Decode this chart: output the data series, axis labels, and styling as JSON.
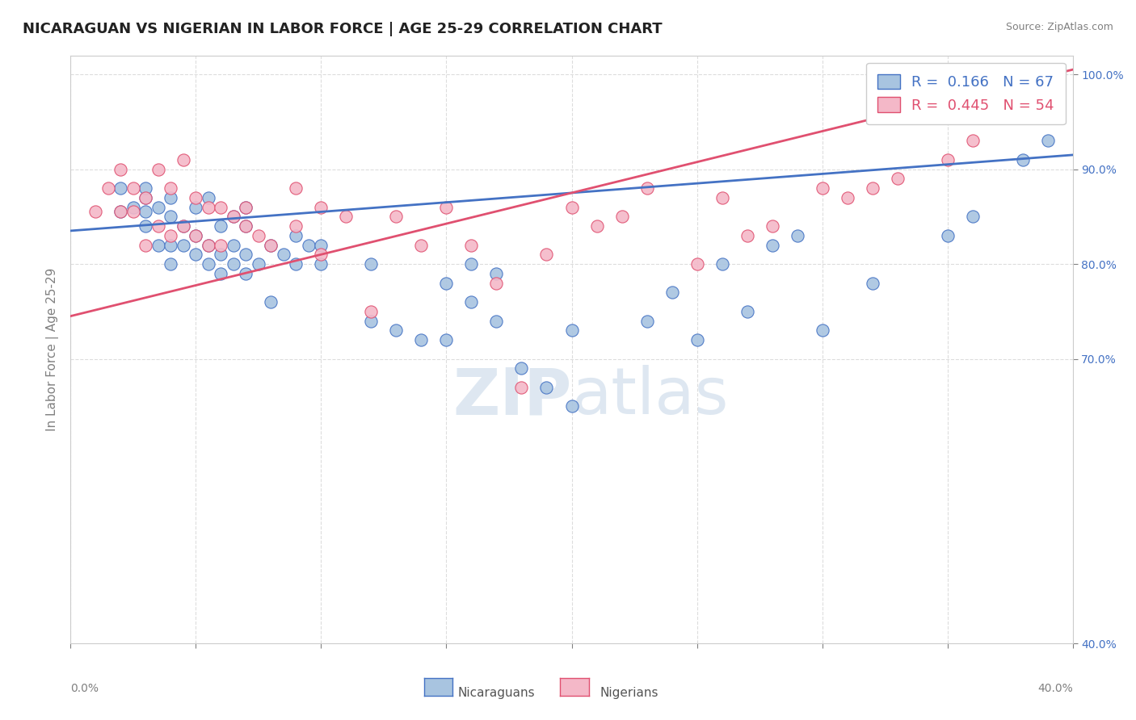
{
  "title": "NICARAGUAN VS NIGERIAN IN LABOR FORCE | AGE 25-29 CORRELATION CHART",
  "source": "Source: ZipAtlas.com",
  "yaxis_label": "In Labor Force | Age 25-29",
  "legend_blue_r_val": "0.166",
  "legend_blue_n_val": "67",
  "legend_pink_r_val": "0.445",
  "legend_pink_n_val": "54",
  "blue_color": "#a8c4e0",
  "pink_color": "#f4b8c8",
  "blue_line_color": "#4472c4",
  "pink_line_color": "#e05070",
  "xmin": 0.0,
  "xmax": 0.4,
  "ymin": 0.4,
  "ymax": 1.02,
  "blue_scatter_x": [
    0.02,
    0.02,
    0.025,
    0.03,
    0.03,
    0.03,
    0.03,
    0.035,
    0.035,
    0.04,
    0.04,
    0.04,
    0.04,
    0.045,
    0.045,
    0.05,
    0.05,
    0.05,
    0.055,
    0.055,
    0.055,
    0.06,
    0.06,
    0.06,
    0.065,
    0.065,
    0.065,
    0.07,
    0.07,
    0.07,
    0.07,
    0.075,
    0.08,
    0.08,
    0.085,
    0.09,
    0.09,
    0.095,
    0.1,
    0.1,
    0.12,
    0.12,
    0.13,
    0.14,
    0.15,
    0.15,
    0.16,
    0.16,
    0.17,
    0.17,
    0.18,
    0.19,
    0.2,
    0.2,
    0.23,
    0.24,
    0.25,
    0.26,
    0.27,
    0.28,
    0.29,
    0.3,
    0.32,
    0.35,
    0.36,
    0.38,
    0.39
  ],
  "blue_scatter_y": [
    0.855,
    0.88,
    0.86,
    0.84,
    0.855,
    0.87,
    0.88,
    0.82,
    0.86,
    0.8,
    0.82,
    0.85,
    0.87,
    0.82,
    0.84,
    0.81,
    0.83,
    0.86,
    0.8,
    0.82,
    0.87,
    0.79,
    0.81,
    0.84,
    0.8,
    0.82,
    0.85,
    0.79,
    0.81,
    0.84,
    0.86,
    0.8,
    0.76,
    0.82,
    0.81,
    0.8,
    0.83,
    0.82,
    0.8,
    0.82,
    0.74,
    0.8,
    0.73,
    0.72,
    0.72,
    0.78,
    0.76,
    0.8,
    0.74,
    0.79,
    0.69,
    0.67,
    0.65,
    0.73,
    0.74,
    0.77,
    0.72,
    0.8,
    0.75,
    0.82,
    0.83,
    0.73,
    0.78,
    0.83,
    0.85,
    0.91,
    0.93
  ],
  "pink_scatter_x": [
    0.01,
    0.015,
    0.02,
    0.02,
    0.025,
    0.025,
    0.03,
    0.03,
    0.035,
    0.035,
    0.04,
    0.04,
    0.045,
    0.045,
    0.05,
    0.05,
    0.055,
    0.055,
    0.06,
    0.06,
    0.065,
    0.07,
    0.07,
    0.075,
    0.08,
    0.09,
    0.09,
    0.1,
    0.1,
    0.11,
    0.12,
    0.13,
    0.14,
    0.15,
    0.16,
    0.17,
    0.18,
    0.19,
    0.2,
    0.21,
    0.22,
    0.23,
    0.25,
    0.26,
    0.27,
    0.28,
    0.3,
    0.31,
    0.32,
    0.33,
    0.35,
    0.36,
    0.38,
    0.39
  ],
  "pink_scatter_y": [
    0.855,
    0.88,
    0.855,
    0.9,
    0.855,
    0.88,
    0.82,
    0.87,
    0.84,
    0.9,
    0.83,
    0.88,
    0.84,
    0.91,
    0.83,
    0.87,
    0.82,
    0.86,
    0.82,
    0.86,
    0.85,
    0.84,
    0.86,
    0.83,
    0.82,
    0.84,
    0.88,
    0.81,
    0.86,
    0.85,
    0.75,
    0.85,
    0.82,
    0.86,
    0.82,
    0.78,
    0.67,
    0.81,
    0.86,
    0.84,
    0.85,
    0.88,
    0.8,
    0.87,
    0.83,
    0.84,
    0.88,
    0.87,
    0.88,
    0.89,
    0.91,
    0.93,
    0.97,
    0.97
  ],
  "blue_line_x": [
    0.0,
    0.4
  ],
  "blue_line_y": [
    0.835,
    0.915
  ],
  "pink_line_x": [
    0.0,
    0.4
  ],
  "pink_line_y": [
    0.745,
    1.005
  ],
  "watermark_zip": "ZIP",
  "watermark_atlas": "atlas",
  "watermark_color": "#c8d8e8",
  "grid_color": "#dddddd",
  "background_color": "#ffffff",
  "title_fontsize": 13,
  "label_fontsize": 11,
  "tick_fontsize": 10,
  "bottom_label_blue": "Nicaraguans",
  "bottom_label_pink": "Nigerians"
}
